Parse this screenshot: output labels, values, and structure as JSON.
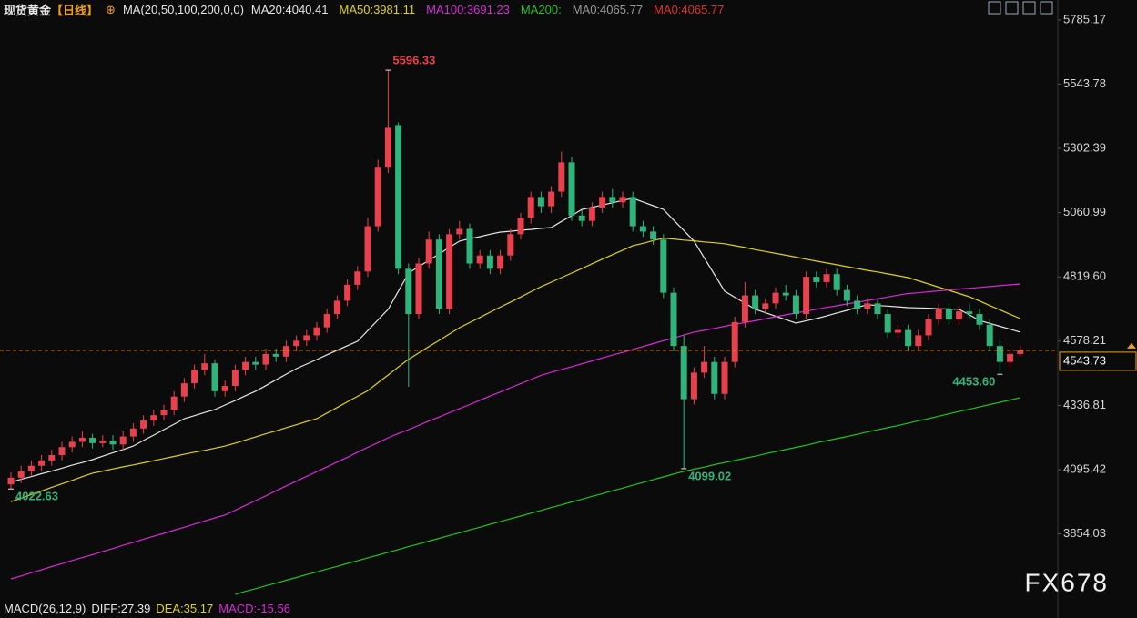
{
  "chart_data": {
    "type": "candlestick",
    "title": "现货黄金",
    "period": "【日线】",
    "indicator": "MA(20,50,100,200,0,0)",
    "ylim": [
      3620,
      5860
    ],
    "yticks": [
      5785.17,
      5543.78,
      5302.39,
      5060.99,
      {
        "value": 4819.6,
        "label": "4819.60"
      },
      4578.21,
      4336.81,
      4095.42,
      3854.03
    ],
    "grid": false,
    "candles": {
      "up_color": "#e8404c",
      "down_color": "#2fb47c",
      "open": [
        4040,
        4065,
        4090,
        4110,
        4130,
        4150,
        4180,
        4200,
        4215,
        4195,
        4205,
        4190,
        4220,
        4250,
        4280,
        4300,
        4320,
        4370,
        4420,
        4470,
        4495,
        4390,
        4410,
        4470,
        4500,
        4490,
        4530,
        4520,
        4560,
        4580,
        4600,
        4630,
        4680,
        4730,
        4790,
        4840,
        5010,
        5230,
        5390,
        4850,
        4680,
        4870,
        4960,
        4700,
        4980,
        5000,
        4870,
        4900,
        4850,
        4900,
        4980,
        5040,
        5120,
        5085,
        5140,
        5250,
        5050,
        5030,
        5080,
        5120,
        5100,
        5120,
        5010,
        4990,
        4960,
        4760,
        4560,
        4360,
        4460,
        4500,
        4380,
        4500,
        4650,
        4750,
        4700,
        4720,
        4760,
        4750,
        4680,
        4820,
        4800,
        4830,
        4770,
        4730,
        4700,
        4720,
        4680,
        4610,
        4620,
        4560,
        4600,
        4660,
        4700,
        4660,
        4690,
        4680,
        4640,
        4560,
        4500,
        4530
      ],
      "high": [
        4085,
        4110,
        4130,
        4150,
        4170,
        4200,
        4220,
        4240,
        4230,
        4225,
        4225,
        4240,
        4270,
        4300,
        4320,
        4340,
        4390,
        4440,
        4490,
        4530,
        4510,
        4430,
        4490,
        4520,
        4520,
        4550,
        4550,
        4580,
        4600,
        4620,
        4650,
        4700,
        4750,
        4810,
        4860,
        5040,
        5260,
        5596.33,
        5400,
        4870,
        4890,
        4990,
        4980,
        5000,
        5030,
        5020,
        4920,
        4920,
        4920,
        5000,
        5060,
        5140,
        5140,
        5160,
        5290,
        5270,
        5070,
        5100,
        5140,
        5150,
        5140,
        5140,
        5030,
        5010,
        4980,
        4780,
        4600,
        4480,
        4560,
        4520,
        4520,
        4670,
        4800,
        4770,
        4740,
        4780,
        4790,
        4770,
        4840,
        4840,
        4850,
        4850,
        4790,
        4750,
        4740,
        4740,
        4700,
        4640,
        4640,
        4620,
        4680,
        4720,
        4720,
        4710,
        4720,
        4700,
        4660,
        4580,
        4550,
        4560
      ],
      "low": [
        4022.63,
        4045,
        4070,
        4090,
        4110,
        4130,
        4160,
        4180,
        4175,
        4180,
        4170,
        4170,
        4200,
        4230,
        4260,
        4280,
        4300,
        4350,
        4400,
        4450,
        4370,
        4370,
        4390,
        4450,
        4470,
        4470,
        4500,
        4500,
        4540,
        4560,
        4580,
        4610,
        4660,
        4710,
        4770,
        4820,
        4990,
        5210,
        4830,
        4407,
        4660,
        4850,
        4680,
        4680,
        4960,
        4850,
        4850,
        4830,
        4830,
        4880,
        4960,
        5020,
        5060,
        5060,
        5120,
        5030,
        5010,
        5010,
        5060,
        5080,
        5080,
        4990,
        4970,
        4940,
        4740,
        4540,
        4099.02,
        4340,
        4440,
        4360,
        4360,
        4480,
        4630,
        4680,
        4680,
        4700,
        4730,
        4660,
        4660,
        4780,
        4780,
        4750,
        4710,
        4680,
        4680,
        4660,
        4590,
        4590,
        4540,
        4540,
        4580,
        4640,
        4640,
        4640,
        4660,
        4620,
        4540,
        4453.6,
        4480,
        4520
      ],
      "close": [
        4065,
        4090,
        4110,
        4130,
        4150,
        4180,
        4200,
        4215,
        4195,
        4205,
        4190,
        4220,
        4250,
        4280,
        4300,
        4320,
        4370,
        4420,
        4470,
        4495,
        4390,
        4410,
        4470,
        4500,
        4490,
        4530,
        4520,
        4560,
        4580,
        4600,
        4630,
        4680,
        4730,
        4790,
        4840,
        5010,
        5230,
        5380,
        4850,
        4680,
        4870,
        4960,
        4700,
        4980,
        5000,
        4870,
        4900,
        4850,
        4900,
        4980,
        5040,
        5120,
        5085,
        5140,
        5250,
        5050,
        5030,
        5080,
        5120,
        5100,
        5120,
        5010,
        4990,
        4960,
        4760,
        4560,
        4360,
        4460,
        4500,
        4380,
        4500,
        4650,
        4750,
        4700,
        4720,
        4760,
        4750,
        4680,
        4820,
        4800,
        4830,
        4770,
        4730,
        4700,
        4720,
        4680,
        4610,
        4620,
        4560,
        4600,
        4660,
        4700,
        4660,
        4690,
        4680,
        4640,
        4560,
        4500,
        4530,
        4543.73
      ]
    },
    "series": [
      {
        "name": "MA20:4040.41",
        "color": "#e6e6e6",
        "values": [
          4048,
          4059,
          4069,
          4080,
          4090,
          4101,
          4112,
          4122,
          4133,
          4146,
          4159,
          4171,
          4184,
          4205,
          4225,
          4246,
          4266,
          4287,
          4298,
          4310,
          4321,
          4338,
          4355,
          4373,
          4390,
          4411,
          4433,
          4454,
          4475,
          4492,
          4509,
          4527,
          4544,
          4561,
          4578,
          4618,
          4658,
          4698,
          4766,
          4834,
          4858,
          4882,
          4906,
          4930,
          4954,
          4963,
          4971,
          4980,
          4988,
          4991,
          4995,
          4998,
          5002,
          5005,
          5028,
          5050,
          5073,
          5081,
          5090,
          5098,
          5107,
          5115,
          5101,
          5087,
          5073,
          5033,
          4994,
          4954,
          4891,
          4829,
          4766,
          4743,
          4721,
          4698,
          4685,
          4672,
          4659,
          4646,
          4655,
          4663,
          4673,
          4684,
          4694,
          4705,
          4715,
          4712,
          4710,
          4707,
          4704,
          4703,
          4702,
          4700,
          4699,
          4698,
          4677,
          4656,
          4645,
          4634,
          4623,
          4612
        ]
      },
      {
        "name": "MA50:3981.11",
        "color": "#e0d21c",
        "values": [
          3975,
          3988,
          4002,
          4015,
          4029,
          4042,
          4055,
          4069,
          4082,
          4090,
          4098,
          4106,
          4113,
          4121,
          4129,
          4137,
          4145,
          4153,
          4161,
          4168,
          4176,
          4184,
          4195,
          4207,
          4218,
          4230,
          4241,
          4253,
          4264,
          4276,
          4287,
          4308,
          4329,
          4350,
          4371,
          4392,
          4422,
          4451,
          4481,
          4510,
          4534,
          4558,
          4581,
          4605,
          4629,
          4648,
          4667,
          4687,
          4706,
          4725,
          4744,
          4764,
          4783,
          4800,
          4817,
          4834,
          4851,
          4869,
          4886,
          4903,
          4920,
          4937,
          4946,
          4956,
          4965,
          4962,
          4958,
          4955,
          4951,
          4948,
          4944,
          4937,
          4930,
          4922,
          4915,
          4908,
          4901,
          4894,
          4886,
          4879,
          4872,
          4865,
          4858,
          4851,
          4844,
          4838,
          4831,
          4824,
          4817,
          4805,
          4793,
          4781,
          4769,
          4757,
          4745,
          4729,
          4712,
          4696,
          4679,
          4663
        ]
      },
      {
        "name": "MA100:3691.23",
        "color": "#d62ad6",
        "values": [
          3685,
          3696,
          3708,
          3719,
          3731,
          3742,
          3754,
          3765,
          3776,
          3788,
          3799,
          3811,
          3822,
          3834,
          3845,
          3856,
          3868,
          3879,
          3891,
          3902,
          3914,
          3925,
          3943,
          3961,
          3979,
          3997,
          4016,
          4034,
          4052,
          4070,
          4088,
          4106,
          4124,
          4142,
          4161,
          4179,
          4197,
          4215,
          4231,
          4246,
          4262,
          4278,
          4293,
          4309,
          4325,
          4340,
          4356,
          4372,
          4387,
          4403,
          4419,
          4434,
          4450,
          4461,
          4472,
          4482,
          4493,
          4504,
          4515,
          4526,
          4536,
          4547,
          4558,
          4569,
          4580,
          4590,
          4601,
          4612,
          4619,
          4626,
          4634,
          4641,
          4648,
          4655,
          4662,
          4670,
          4677,
          4684,
          4691,
          4698,
          4705,
          4711,
          4718,
          4724,
          4731,
          4737,
          4744,
          4751,
          4757,
          4760,
          4764,
          4767,
          4770,
          4774,
          4777,
          4780,
          4783,
          4787,
          4790,
          4793
        ]
      },
      {
        "name": "MA200:",
        "color": "#22c21e",
        "values": [
          null,
          null,
          null,
          null,
          null,
          null,
          null,
          null,
          null,
          null,
          null,
          null,
          null,
          null,
          null,
          null,
          null,
          null,
          null,
          null,
          null,
          null,
          3627,
          3638,
          3648,
          3659,
          3669,
          3680,
          3690,
          3701,
          3711,
          3722,
          3732,
          3743,
          3753,
          3764,
          3774,
          3785,
          3795,
          3806,
          3816,
          3827,
          3837,
          3848,
          3858,
          3869,
          3879,
          3890,
          3900,
          3911,
          3921,
          3932,
          3942,
          3953,
          3963,
          3974,
          3984,
          3995,
          4005,
          4016,
          4026,
          4037,
          4047,
          4058,
          4068,
          4079,
          4089,
          4097,
          4105,
          4114,
          4122,
          4130,
          4138,
          4146,
          4155,
          4163,
          4171,
          4179,
          4187,
          4196,
          4204,
          4212,
          4220,
          4228,
          4237,
          4245,
          4253,
          4261,
          4270,
          4279,
          4287,
          4296,
          4305,
          4314,
          4322,
          4331,
          4340,
          4348,
          4357,
          4366
        ]
      }
    ],
    "extra_legend": [
      {
        "text": "MA0:4065.77",
        "color": "#9a9a9a"
      },
      {
        "text": "MA0:4065.77",
        "color": "#e03030"
      }
    ],
    "annotations": [
      {
        "value": 5596.33,
        "label": "5596.33",
        "color": "#e8404c"
      },
      {
        "value": 4022.63,
        "label": "4022.63",
        "color": "#2fb47c"
      },
      {
        "value": 4099.02,
        "label": "4099.02",
        "color": "#2fb47c"
      },
      {
        "value": 4453.6,
        "label": "4453.60",
        "color": "#2fb47c"
      }
    ],
    "last_price": 4543.73,
    "last_price_color": "#f0a020",
    "macd_legend": [
      {
        "text": "MACD(26,12,9)",
        "color": "#e6e6e6"
      },
      {
        "text": "DIFF:27.39",
        "color": "#e6e6e6"
      },
      {
        "text": "DEA:35.17",
        "color": "#e0d21c"
      },
      {
        "text": "MACD:-15.56",
        "color": "#d62ad6"
      }
    ],
    "watermark": "FX678"
  }
}
